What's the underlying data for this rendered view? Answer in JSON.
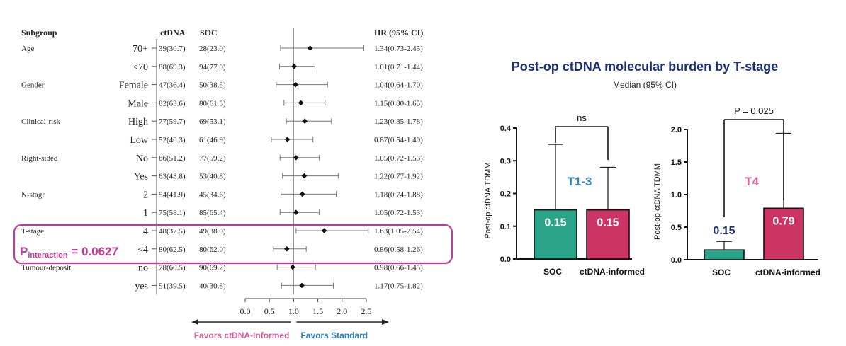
{
  "chart_data": [
    {
      "type": "forest",
      "headers": {
        "subgroup": "Subgroup",
        "ctdna": "ctDNA",
        "soc": "SOC",
        "hr": "HR (95% CI)"
      },
      "rows": [
        {
          "group": "Age",
          "level": "70+",
          "ctdna": "39(30.7)",
          "soc": "28(23.0)",
          "hr": 1.34,
          "lo": 0.73,
          "hi": 2.45,
          "hr_text": "1.34(0.73-2.45)"
        },
        {
          "group": "",
          "level": "<70",
          "ctdna": "88(69.3)",
          "soc": "94(77.0)",
          "hr": 1.01,
          "lo": 0.71,
          "hi": 1.44,
          "hr_text": "1.01(0.71-1.44)"
        },
        {
          "group": "Gender",
          "level": "Female",
          "ctdna": "47(36.4)",
          "soc": "50(38.5)",
          "hr": 1.04,
          "lo": 0.64,
          "hi": 1.7,
          "hr_text": "1.04(0.64-1.70)"
        },
        {
          "group": "",
          "level": "Male",
          "ctdna": "82(63.6)",
          "soc": "80(61.5)",
          "hr": 1.15,
          "lo": 0.8,
          "hi": 1.65,
          "hr_text": "1.15(0.80-1.65)"
        },
        {
          "group": "Clinical-risk",
          "level": "High",
          "ctdna": "77(59.7)",
          "soc": "69(53.1)",
          "hr": 1.23,
          "lo": 0.85,
          "hi": 1.78,
          "hr_text": "1.23(0.85-1.78)"
        },
        {
          "group": "",
          "level": "Low",
          "ctdna": "52(40.3)",
          "soc": "61(46.9)",
          "hr": 0.87,
          "lo": 0.54,
          "hi": 1.4,
          "hr_text": "0.87(0.54-1.40)"
        },
        {
          "group": "Right-sided",
          "level": "No",
          "ctdna": "66(51.2)",
          "soc": "77(59.2)",
          "hr": 1.05,
          "lo": 0.72,
          "hi": 1.53,
          "hr_text": "1.05(0.72-1.53)"
        },
        {
          "group": "",
          "level": "Yes",
          "ctdna": "63(48.8)",
          "soc": "53(40.8)",
          "hr": 1.22,
          "lo": 0.77,
          "hi": 1.92,
          "hr_text": "1.22(0.77-1.92)"
        },
        {
          "group": "N-stage",
          "level": "2",
          "ctdna": "54(41.9)",
          "soc": "45(34.6)",
          "hr": 1.18,
          "lo": 0.74,
          "hi": 1.88,
          "hr_text": "1.18(0.74-1.88)"
        },
        {
          "group": "",
          "level": "1",
          "ctdna": "75(58.1)",
          "soc": "85(65.4)",
          "hr": 1.05,
          "lo": 0.72,
          "hi": 1.53,
          "hr_text": "1.05(0.72-1.53)"
        },
        {
          "group": "T-stage",
          "level": "4",
          "ctdna": "48(37.5)",
          "soc": "49(38.0)",
          "hr": 1.63,
          "lo": 1.05,
          "hi": 2.54,
          "hr_text": "1.63(1.05-2.54)"
        },
        {
          "group": "",
          "level": "<4",
          "ctdna": "80(62.5)",
          "soc": "80(62.0)",
          "hr": 0.86,
          "lo": 0.58,
          "hi": 1.26,
          "hr_text": "0.86(0.58-1.26)"
        },
        {
          "group": "Tumour-deposit",
          "level": "no",
          "ctdna": "78(60.5)",
          "soc": "90(69.2)",
          "hr": 0.98,
          "lo": 0.66,
          "hi": 1.45,
          "hr_text": "0.98(0.66-1.45)"
        },
        {
          "group": "",
          "level": "yes",
          "ctdna": "51(39.5)",
          "soc": "40(30.8)",
          "hr": 1.17,
          "lo": 0.75,
          "hi": 1.82,
          "hr_text": "1.17(0.75-1.82)"
        }
      ],
      "xlim": [
        0.0,
        2.5
      ],
      "xticks": [
        0.0,
        0.5,
        1.0,
        1.5,
        2.0,
        2.5
      ],
      "xtick_labels": [
        "0.0",
        "0.5",
        "1.0",
        "1.5",
        "2.0",
        "2.5"
      ],
      "reference_line": 1.0,
      "interaction": {
        "p_label": "P",
        "p_subscript": "interaction",
        "p_value": "= 0.0627",
        "color": "#c43a9a"
      },
      "favors_left": {
        "label": "Favors ctDNA-Informed",
        "color": "#d9609a"
      },
      "favors_right": {
        "label": "Favors Standard",
        "color": "#2f86b8"
      }
    },
    {
      "type": "bar",
      "panel_title": "Post-op ctDNA molecular burden by T-stage",
      "subtitle": "Median (95% CI)",
      "title_color": "#1b2f7a",
      "title": "T1-3",
      "title_color_panel": "#2f86b8",
      "ylabel": "Post-op ctDNA TDMM",
      "ylim": [
        0.0,
        0.4
      ],
      "yticks": [
        "0.0",
        "0.1",
        "0.2",
        "0.3",
        "0.4"
      ],
      "categories": [
        "SOC",
        "ctDNA-informed"
      ],
      "values": [
        0.15,
        0.15
      ],
      "err_hi": [
        0.35,
        0.28
      ],
      "value_labels": [
        "0.15",
        "0.15"
      ],
      "label_colors": [
        "#ffffff",
        "#ffffff"
      ],
      "colors": [
        "#2aa58a",
        "#cc3464"
      ],
      "significance": "ns"
    },
    {
      "type": "bar",
      "title": "T4",
      "title_color_panel": "#d9609a",
      "ylabel": "Post-op ctDNA TDMM",
      "ylim": [
        0.0,
        2.0
      ],
      "yticks": [
        "0.0",
        "0.5",
        "1.0",
        "1.5",
        "2.0"
      ],
      "categories": [
        "SOC",
        "ctDNA-informed"
      ],
      "values": [
        0.15,
        0.79
      ],
      "err_hi": [
        0.28,
        1.94
      ],
      "value_labels": [
        "0.15",
        "0.79"
      ],
      "label_colors": [
        "#1b2f7a",
        "#ffffff"
      ],
      "colors": [
        "#2aa58a",
        "#cc3464"
      ],
      "significance": "P = 0.025"
    }
  ]
}
